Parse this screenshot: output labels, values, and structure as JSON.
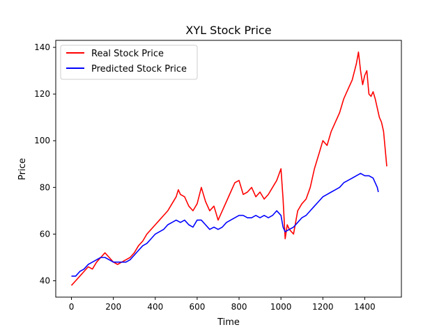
{
  "chart_data": {
    "type": "line",
    "title": "XYL Stock Price",
    "xlabel": "Time",
    "ylabel": "Price",
    "xlim": [
      -75,
      1575
    ],
    "ylim": [
      33,
      143
    ],
    "x_ticks": [
      0,
      200,
      400,
      600,
      800,
      1000,
      1200,
      1400
    ],
    "y_ticks": [
      40,
      60,
      80,
      100,
      120,
      140
    ],
    "grid": false,
    "legend_position": "upper-left",
    "series": [
      {
        "name": "Real Stock Price",
        "color": "#ff0000",
        "x": [
          0,
          20,
          40,
          60,
          80,
          100,
          120,
          140,
          160,
          180,
          200,
          220,
          240,
          260,
          280,
          300,
          320,
          340,
          360,
          380,
          400,
          420,
          440,
          460,
          480,
          500,
          510,
          520,
          540,
          560,
          580,
          600,
          620,
          640,
          660,
          680,
          700,
          720,
          740,
          760,
          780,
          800,
          820,
          840,
          860,
          880,
          900,
          920,
          940,
          960,
          980,
          1000,
          1010,
          1020,
          1030,
          1040,
          1060,
          1080,
          1100,
          1120,
          1140,
          1160,
          1180,
          1200,
          1220,
          1240,
          1260,
          1280,
          1300,
          1320,
          1340,
          1360,
          1370,
          1380,
          1390,
          1400,
          1410,
          1420,
          1430,
          1440,
          1450,
          1460,
          1470,
          1480,
          1490,
          1500,
          1505
        ],
        "values": [
          38,
          40,
          42,
          44,
          46,
          45,
          48,
          50,
          52,
          50,
          48,
          47,
          48,
          49,
          50,
          52,
          55,
          57,
          60,
          62,
          64,
          66,
          68,
          70,
          73,
          76,
          79,
          77,
          76,
          72,
          70,
          73,
          80,
          74,
          70,
          72,
          66,
          70,
          74,
          78,
          82,
          83,
          77,
          78,
          80,
          76,
          78,
          75,
          77,
          80,
          83,
          88,
          75,
          58,
          64,
          62,
          60,
          70,
          73,
          75,
          80,
          88,
          94,
          100,
          98,
          104,
          108,
          112,
          118,
          122,
          126,
          133,
          138,
          130,
          124,
          128,
          130,
          120,
          119,
          121,
          118,
          114,
          110,
          108,
          104,
          94,
          89
        ]
      },
      {
        "name": "Predicted Stock Price",
        "color": "#0000ff",
        "x": [
          0,
          20,
          40,
          60,
          80,
          100,
          120,
          140,
          160,
          180,
          200,
          220,
          240,
          260,
          280,
          300,
          320,
          340,
          360,
          380,
          400,
          420,
          440,
          460,
          480,
          500,
          520,
          540,
          560,
          580,
          600,
          620,
          640,
          660,
          680,
          700,
          720,
          740,
          760,
          780,
          800,
          820,
          840,
          860,
          880,
          900,
          920,
          940,
          960,
          980,
          1000,
          1010,
          1020,
          1040,
          1060,
          1080,
          1100,
          1120,
          1140,
          1160,
          1180,
          1200,
          1220,
          1240,
          1260,
          1280,
          1300,
          1320,
          1340,
          1360,
          1380,
          1400,
          1420,
          1440,
          1460,
          1465
        ],
        "values": [
          42,
          42,
          44,
          45,
          47,
          48,
          49,
          50,
          50,
          49,
          48,
          48,
          48,
          48,
          49,
          51,
          53,
          55,
          56,
          58,
          60,
          61,
          62,
          64,
          65,
          66,
          65,
          66,
          64,
          63,
          66,
          66,
          64,
          62,
          63,
          62,
          63,
          65,
          66,
          67,
          68,
          68,
          67,
          67,
          68,
          67,
          68,
          67,
          68,
          70,
          68,
          63,
          61,
          62,
          63,
          65,
          67,
          68,
          70,
          72,
          74,
          76,
          77,
          78,
          79,
          80,
          82,
          83,
          84,
          85,
          86,
          85,
          85,
          84,
          80,
          78
        ]
      }
    ]
  }
}
